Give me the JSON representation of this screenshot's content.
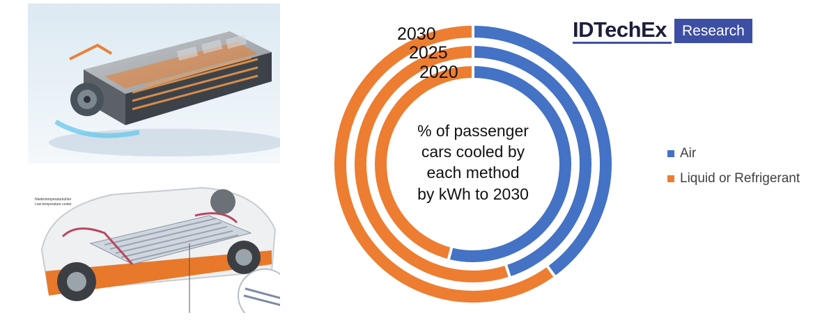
{
  "colors": {
    "air": "#4472c4",
    "liquid": "#ed7d31",
    "logo_blue": "#3d4fa3"
  },
  "logo": {
    "brand": "IDTechEx",
    "badge": "Research"
  },
  "photos": {
    "car_callout_line1": "Niedertemperaturkühler",
    "car_callout_line2": "Low-temperature cooler"
  },
  "chart_data": {
    "type": "donut",
    "center_text": [
      "% of passenger",
      "cars cooled by",
      "each method",
      "by kWh to 2030"
    ],
    "rings_outer_to_inner": [
      "2030",
      "2025",
      "2020"
    ],
    "series": [
      {
        "name": "Air",
        "values": [
          40,
          45,
          54
        ]
      },
      {
        "name": "Liquid or Refrigerant",
        "values": [
          60,
          55,
          46
        ]
      }
    ],
    "legend": [
      "Air",
      "Liquid or Refrigerant"
    ],
    "legend_position": "right"
  }
}
